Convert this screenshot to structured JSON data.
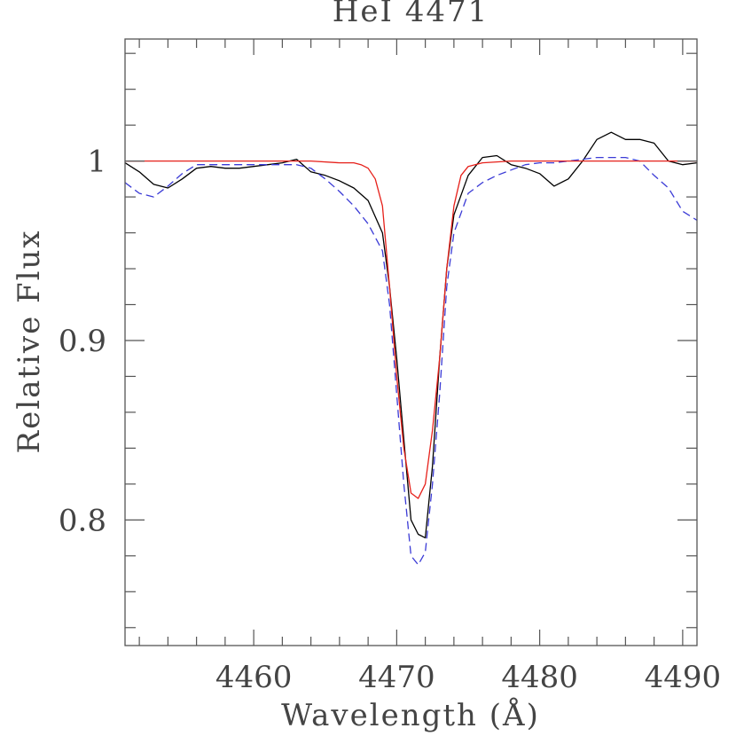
{
  "chart_data": {
    "type": "line",
    "title": "HeI 4471",
    "xlabel": "Wavelength (Å)",
    "ylabel": "Relative Flux",
    "xlim": [
      4451,
      4491
    ],
    "ylim": [
      0.73,
      1.068
    ],
    "x_ticks": [
      {
        "value": 4460,
        "label": "4460"
      },
      {
        "value": 4470,
        "label": "4470"
      },
      {
        "value": 4480,
        "label": "4480"
      },
      {
        "value": 4490,
        "label": "4490"
      }
    ],
    "y_ticks": [
      {
        "value": 0.8,
        "label": "0.8"
      },
      {
        "value": 0.9,
        "label": "0.9"
      },
      {
        "value": 1.0,
        "label": "1"
      }
    ],
    "grid": false,
    "legend": "none",
    "series": [
      {
        "color": "#000000",
        "style": "solid",
        "x": [
          4451.0,
          4452.0,
          4453.0,
          4454.0,
          4455.0,
          4456.0,
          4457.0,
          4458.0,
          4459.0,
          4460.0,
          4461.0,
          4462.0,
          4463.0,
          4464.0,
          4465.0,
          4466.0,
          4467.0,
          4468.0,
          4469.0,
          4469.5,
          4470.0,
          4470.5,
          4471.0,
          4471.5,
          4472.0,
          4472.5,
          4473.0,
          4473.5,
          4474.0,
          4475.0,
          4476.0,
          4477.0,
          4478.0,
          4479.0,
          4480.0,
          4481.0,
          4482.0,
          4483.0,
          4484.0,
          4485.0,
          4486.0,
          4487.0,
          4488.0,
          4489.0,
          4490.0,
          4491.0
        ],
        "y": [
          0.999,
          0.994,
          0.987,
          0.985,
          0.99,
          0.996,
          0.997,
          0.996,
          0.996,
          0.997,
          0.998,
          0.999,
          1.001,
          0.994,
          0.992,
          0.989,
          0.985,
          0.978,
          0.96,
          0.93,
          0.89,
          0.845,
          0.8,
          0.792,
          0.79,
          0.83,
          0.89,
          0.94,
          0.97,
          0.992,
          1.002,
          1.003,
          0.998,
          0.996,
          0.993,
          0.986,
          0.99,
          1.0,
          1.012,
          1.016,
          1.012,
          1.012,
          1.01,
          1.0,
          0.998,
          0.999
        ],
        "values_estimated": true
      },
      {
        "color": "#3b3bd6",
        "style": "dashed",
        "x": [
          4451.0,
          4452.0,
          4453.0,
          4454.0,
          4455.0,
          4456.0,
          4457.0,
          4458.0,
          4459.0,
          4460.0,
          4461.0,
          4462.0,
          4463.0,
          4464.0,
          4465.0,
          4466.0,
          4467.0,
          4468.0,
          4469.0,
          4469.5,
          4470.0,
          4470.5,
          4471.0,
          4471.5,
          4472.0,
          4472.5,
          4473.0,
          4473.5,
          4474.0,
          4475.0,
          4476.0,
          4477.0,
          4478.0,
          4479.0,
          4480.0,
          4481.0,
          4482.0,
          4483.0,
          4484.0,
          4485.0,
          4486.0,
          4487.0,
          4488.0,
          4489.0,
          4490.0,
          4491.0
        ],
        "y": [
          0.988,
          0.982,
          0.98,
          0.986,
          0.993,
          0.998,
          0.998,
          0.998,
          0.998,
          0.998,
          0.998,
          0.998,
          0.998,
          0.996,
          0.99,
          0.983,
          0.975,
          0.965,
          0.95,
          0.92,
          0.87,
          0.82,
          0.78,
          0.775,
          0.782,
          0.82,
          0.87,
          0.93,
          0.96,
          0.982,
          0.988,
          0.992,
          0.995,
          0.998,
          0.999,
          0.999,
          1.0,
          1.001,
          1.002,
          1.002,
          1.002,
          1.0,
          0.992,
          0.985,
          0.972,
          0.967
        ],
        "values_estimated": true
      },
      {
        "color": "#e6201a",
        "style": "solid",
        "x": [
          4451.0,
          4455.0,
          4460.0,
          4462.0,
          4464.0,
          4466.0,
          4467.0,
          4467.5,
          4468.0,
          4468.5,
          4469.0,
          4469.5,
          4470.0,
          4470.5,
          4471.0,
          4471.5,
          4472.0,
          4472.5,
          4473.0,
          4473.5,
          4474.0,
          4474.5,
          4475.0,
          4476.0,
          4478.0,
          4480.0,
          4485.0,
          4491.0
        ],
        "y": [
          1.0,
          1.0,
          1.0,
          1.0,
          1.0,
          0.999,
          0.999,
          0.998,
          0.996,
          0.99,
          0.975,
          0.93,
          0.88,
          0.84,
          0.815,
          0.812,
          0.82,
          0.85,
          0.89,
          0.94,
          0.975,
          0.992,
          0.997,
          0.999,
          1.0,
          1.0,
          1.0,
          1.0
        ],
        "values_estimated": true
      }
    ]
  }
}
